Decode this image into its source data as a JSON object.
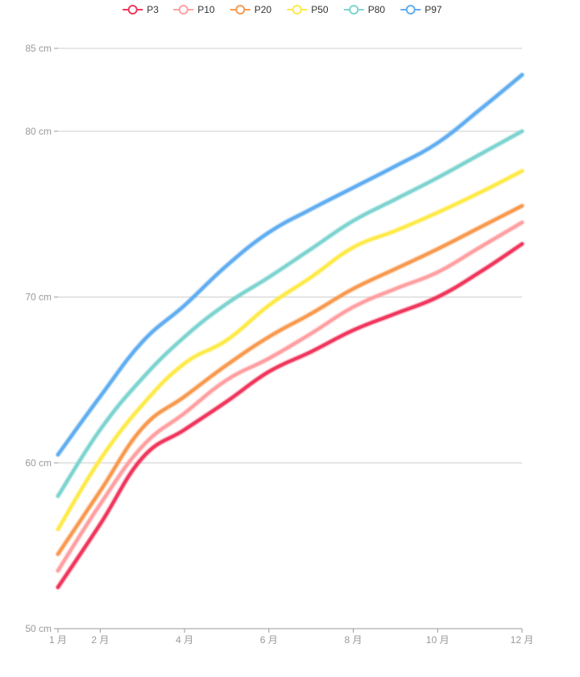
{
  "chart_data": {
    "type": "line",
    "title": "",
    "xlabel": "",
    "ylabel": "",
    "x": [
      1,
      2,
      3,
      4,
      5,
      6,
      7,
      8,
      9,
      10,
      11,
      12
    ],
    "x_tick_values": [
      1,
      2,
      4,
      6,
      8,
      10,
      12
    ],
    "x_tick_labels": [
      "1 月",
      "2 月",
      "4 月",
      "6 月",
      "8 月",
      "10 月",
      "12 月"
    ],
    "xlim": [
      1,
      12
    ],
    "ylim": [
      50,
      85
    ],
    "y_ticks": [
      50,
      60,
      70,
      80,
      85
    ],
    "y_tick_labels": [
      "50 cm",
      "60 cm",
      "70 cm",
      "80 cm",
      "85 cm"
    ],
    "grid": true,
    "smooth": true,
    "legend_position": "top-center",
    "series": [
      {
        "name": "P3",
        "color": "#f0385e",
        "values": [
          52.5,
          56.3,
          60.3,
          62.0,
          63.7,
          65.5,
          66.7,
          68.0,
          69.0,
          70.0,
          71.5,
          73.2
        ]
      },
      {
        "name": "P10",
        "color": "#ffa0a2",
        "values": [
          53.5,
          57.5,
          61.0,
          63.0,
          65.0,
          66.3,
          67.8,
          69.4,
          70.5,
          71.5,
          73.0,
          74.5
        ]
      },
      {
        "name": "P20",
        "color": "#f89a50",
        "values": [
          54.5,
          58.3,
          62.1,
          64.0,
          65.9,
          67.6,
          69.0,
          70.5,
          71.7,
          72.9,
          74.2,
          75.5
        ]
      },
      {
        "name": "P50",
        "color": "#feea4a",
        "values": [
          56.0,
          60.2,
          63.5,
          66.0,
          67.4,
          69.5,
          71.2,
          73.0,
          74.0,
          75.1,
          76.3,
          77.6
        ]
      },
      {
        "name": "P80",
        "color": "#7ed4d0",
        "values": [
          58.0,
          62.0,
          65.1,
          67.6,
          69.6,
          71.2,
          72.9,
          74.6,
          75.9,
          77.2,
          78.6,
          80.0
        ]
      },
      {
        "name": "P97",
        "color": "#62aef0",
        "values": [
          60.5,
          64.0,
          67.3,
          69.5,
          71.9,
          73.9,
          75.3,
          76.6,
          77.9,
          79.3,
          81.3,
          83.4
        ]
      }
    ]
  }
}
